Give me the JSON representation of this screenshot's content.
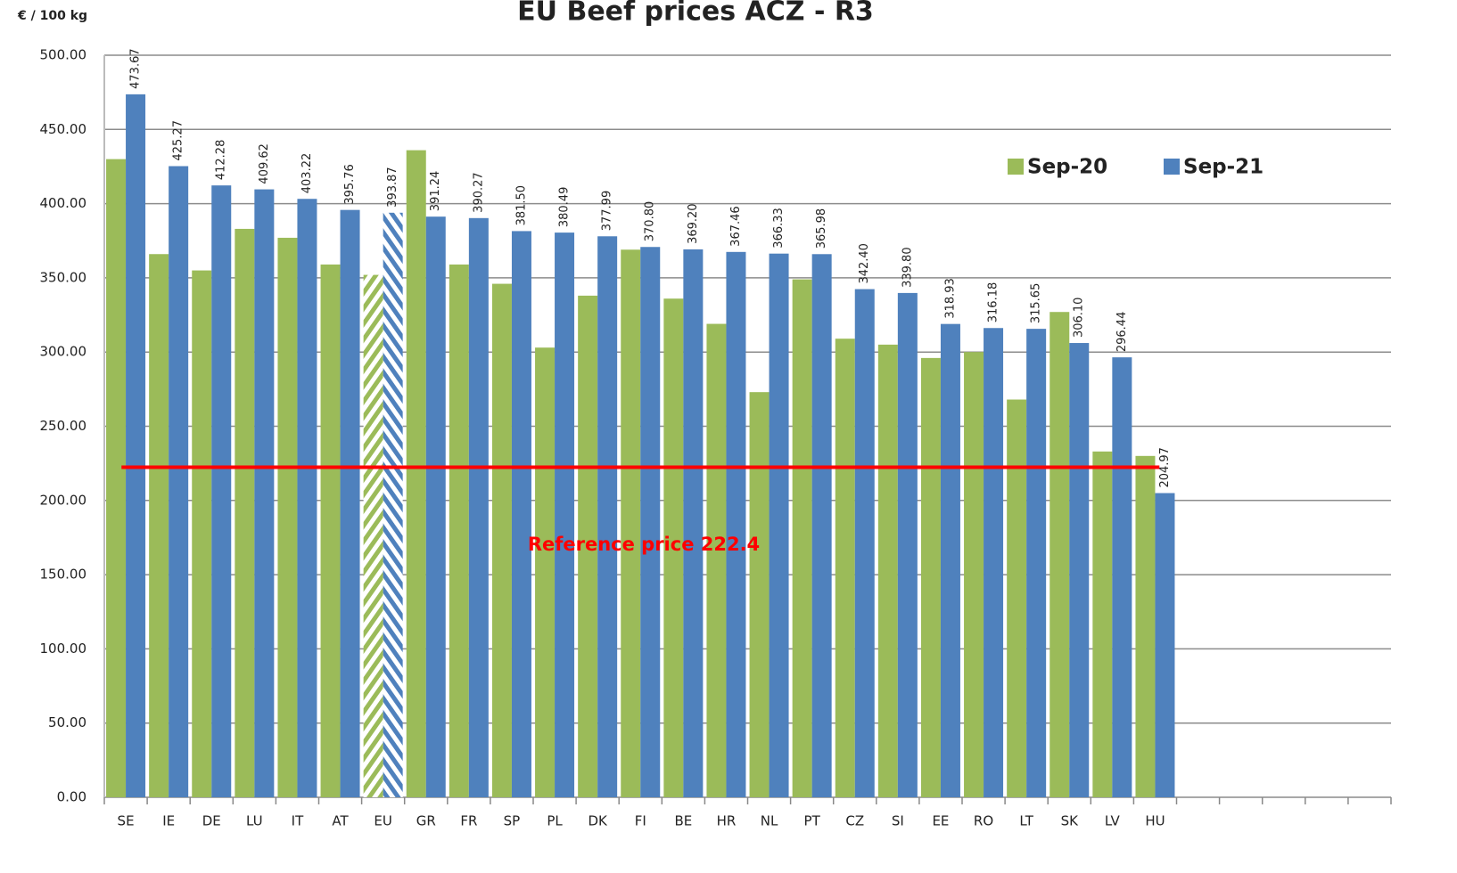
{
  "chart_data": {
    "type": "bar",
    "title": "EU Beef prices ACZ - R3",
    "y_axis_label": "€ / 100 kg",
    "categories": [
      "SE",
      "IE",
      "DE",
      "LU",
      "IT",
      "AT",
      "EU",
      "GR",
      "FR",
      "SP",
      "PL",
      "DK",
      "FI",
      "BE",
      "HR",
      "NL",
      "PT",
      "CZ",
      "SI",
      "EE",
      "RO",
      "LT",
      "SK",
      "LV",
      "HU",
      null,
      null,
      null,
      null,
      null
    ],
    "series": [
      {
        "name": "Sep-20",
        "color": "#9bbb59",
        "values": [
          430,
          366,
          355,
          383,
          377,
          359,
          352,
          436,
          359,
          346,
          303,
          338,
          369,
          336,
          319,
          273,
          349,
          309,
          305,
          296,
          300,
          268,
          327,
          233,
          230,
          null,
          null,
          null,
          null,
          null
        ]
      },
      {
        "name": "Sep-21",
        "color": "#4f81bd",
        "values": [
          473.67,
          425.27,
          412.28,
          409.62,
          403.22,
          395.76,
          393.87,
          391.24,
          390.27,
          381.5,
          380.49,
          377.99,
          370.8,
          369.2,
          367.46,
          366.33,
          365.98,
          342.4,
          339.8,
          318.93,
          316.18,
          315.65,
          306.1,
          296.44,
          204.97,
          null,
          null,
          null,
          null,
          null
        ],
        "value_labels": [
          "473.67",
          "425.27",
          "412.28",
          "409.62",
          "403.22",
          "395.76",
          "393.87",
          "391.24",
          "390.27",
          "381.50",
          "380.49",
          "377.99",
          "370.80",
          "369.20",
          "367.46",
          "366.33",
          "365.98",
          "342.40",
          "339.80",
          "318.93",
          "316.18",
          "315.65",
          "306.10",
          "296.44",
          "204.97",
          null,
          null,
          null,
          null,
          null
        ]
      }
    ],
    "hatched_category": "EU",
    "reference": {
      "value": 222.4,
      "label": "Reference price 222.4",
      "color": "#ff0000"
    },
    "ylim": [
      0,
      500
    ],
    "yticks": [
      {
        "value": 0,
        "label": "0.00"
      },
      {
        "value": 50,
        "label": "50.00"
      },
      {
        "value": 100,
        "label": "100.00"
      },
      {
        "value": 150,
        "label": "150.00"
      },
      {
        "value": 200,
        "label": "200.00"
      },
      {
        "value": 250,
        "label": "250.00"
      },
      {
        "value": 300,
        "label": "300.00"
      },
      {
        "value": 350,
        "label": "350.00"
      },
      {
        "value": 400,
        "label": "400.00"
      },
      {
        "value": 450,
        "label": "450.00"
      },
      {
        "value": 500,
        "label": "500.00"
      }
    ],
    "grid": true,
    "legend": "top-right"
  }
}
